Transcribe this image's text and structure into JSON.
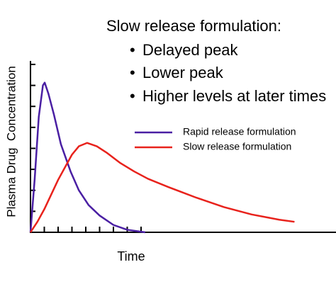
{
  "chart_data": {
    "type": "line",
    "title": "Slow release formulation:",
    "annotations": [
      "Delayed peak",
      "Lower peak",
      "Higher levels at later times"
    ],
    "x_label": "Time",
    "y_label": "Plasma Drug  Concentration",
    "xlim": [
      0,
      22
    ],
    "ylim": [
      0,
      8.1
    ],
    "xticks": [
      1,
      2,
      3,
      4,
      5,
      6,
      7,
      8
    ],
    "yticks": [
      1,
      2,
      3,
      4,
      5,
      6,
      7,
      8
    ],
    "series": [
      {
        "name": "Rapid release formulation",
        "color": "#4a1fa3",
        "x": [
          0,
          0.3,
          0.6,
          0.9,
          1.03,
          1.3,
          1.7,
          2.2,
          2.9,
          3.5,
          4.2,
          5,
          6,
          7,
          8.3
        ],
        "values": [
          0,
          2.5,
          5.5,
          7.0,
          7.13,
          6.6,
          5.6,
          4.2,
          2.9,
          2.0,
          1.3,
          0.8,
          0.35,
          0.12,
          0
        ]
      },
      {
        "name": "Slow release formulation",
        "color": "#e8221c",
        "x": [
          0,
          0.5,
          1,
          1.5,
          2,
          2.5,
          3,
          3.5,
          4.1,
          4.8,
          5.5,
          6.5,
          7.5,
          8.5,
          10,
          12,
          14,
          16,
          18,
          19.1
        ],
        "values": [
          0,
          0.5,
          1.1,
          1.8,
          2.5,
          3.1,
          3.7,
          4.1,
          4.26,
          4.1,
          3.8,
          3.3,
          2.9,
          2.55,
          2.15,
          1.65,
          1.2,
          0.85,
          0.6,
          0.5
        ]
      }
    ]
  }
}
